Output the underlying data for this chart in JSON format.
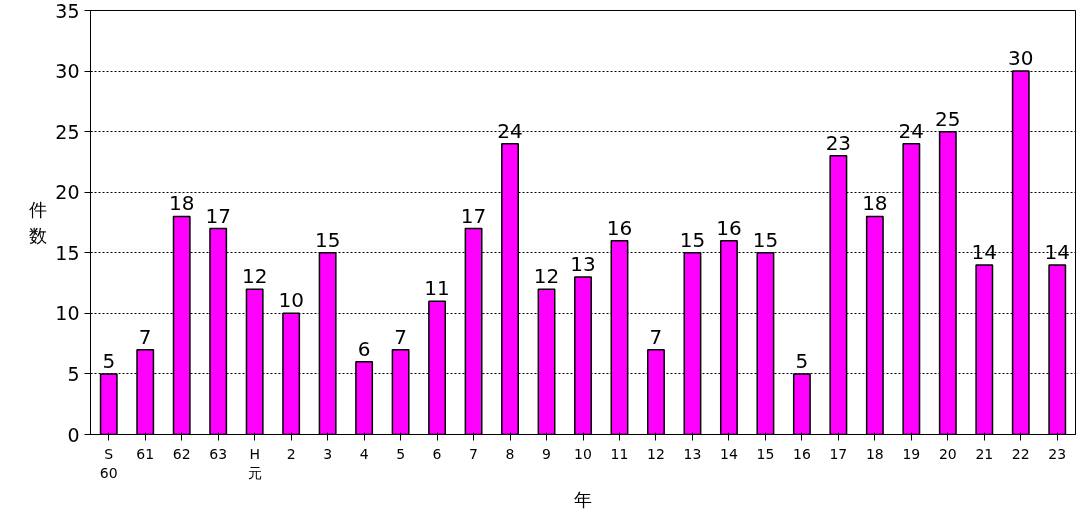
{
  "chart_data": {
    "type": "bar",
    "categories": [
      "S\n60",
      "61",
      "62",
      "63",
      "H\n元",
      "2",
      "3",
      "4",
      "5",
      "6",
      "7",
      "8",
      "9",
      "10",
      "11",
      "12",
      "13",
      "14",
      "15",
      "16",
      "17",
      "18",
      "19",
      "20",
      "21",
      "22",
      "23"
    ],
    "values": [
      5,
      7,
      18,
      17,
      12,
      10,
      15,
      6,
      7,
      11,
      17,
      24,
      12,
      13,
      16,
      7,
      15,
      16,
      15,
      5,
      23,
      18,
      24,
      25,
      14,
      30,
      14
    ],
    "color": "#ff00ff",
    "xlabel": "年",
    "ylabel": "件数",
    "ylim": [
      0,
      35
    ],
    "yticks": [
      0,
      5,
      10,
      15,
      20,
      25,
      30,
      35
    ],
    "grid": "y",
    "data_labels": true
  }
}
